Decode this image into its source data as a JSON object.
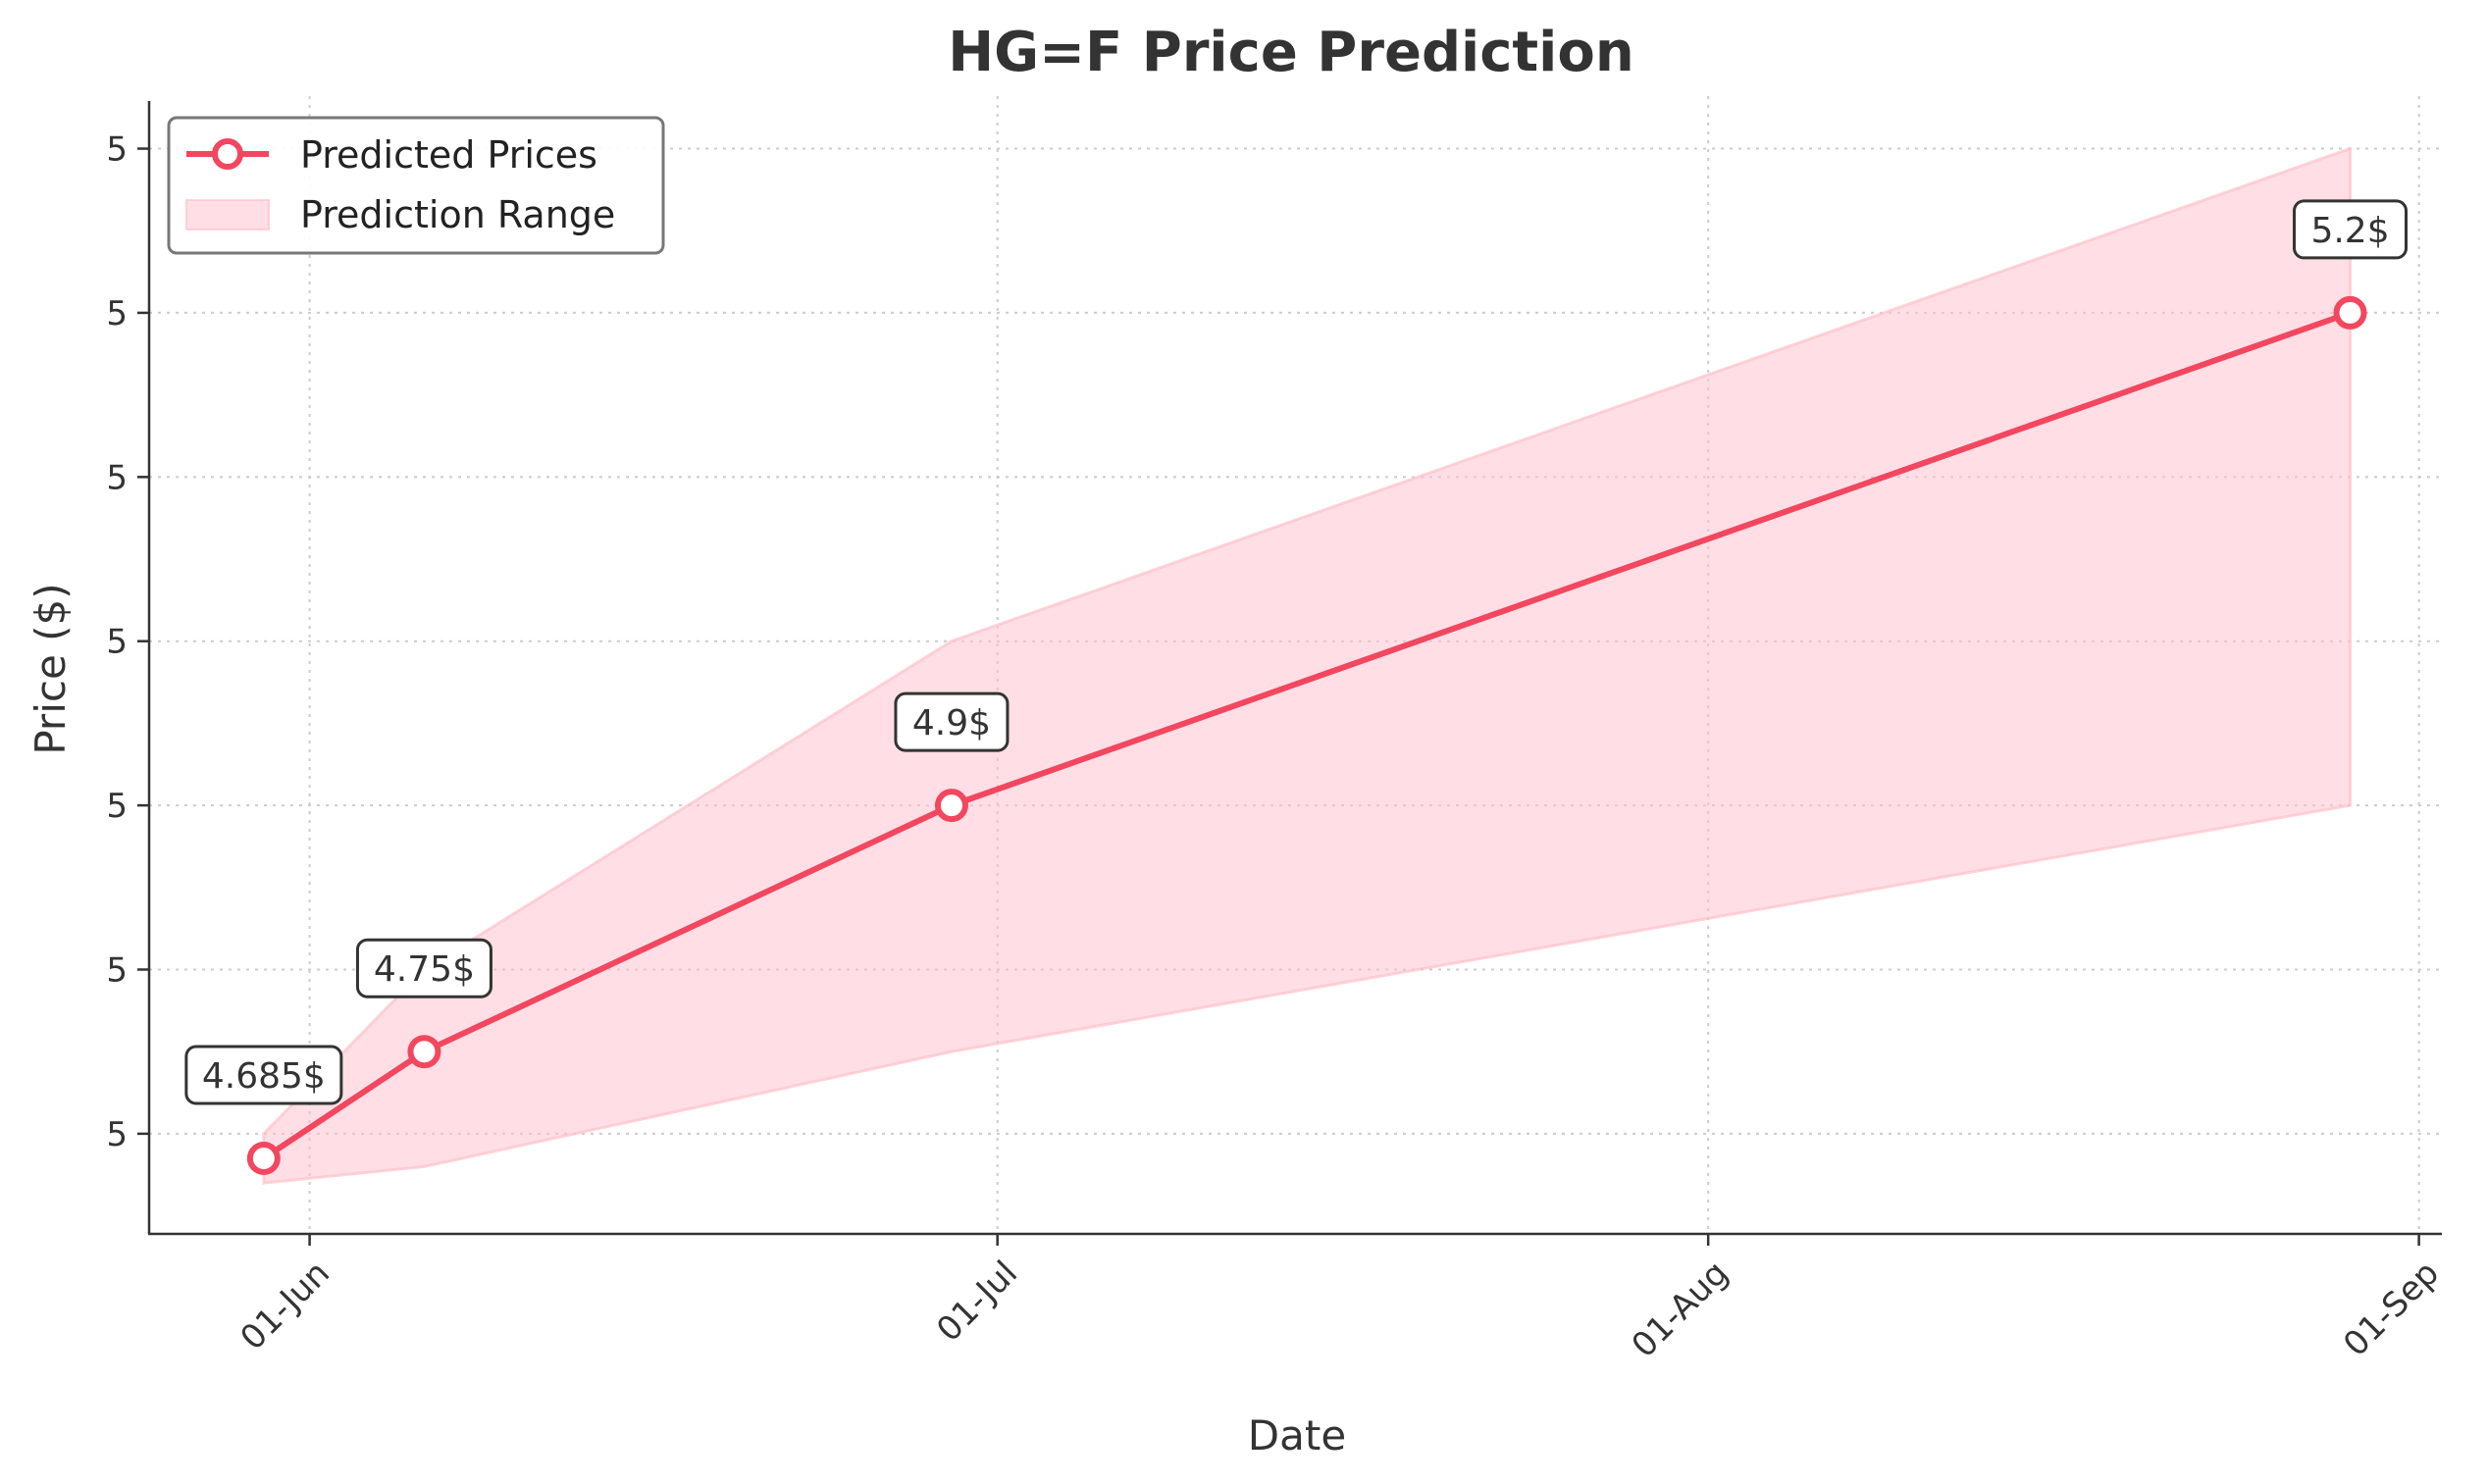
{
  "chart_data": {
    "type": "line",
    "title": "HG=F Price Prediction",
    "xlabel": "Date",
    "ylabel": "Price ($)",
    "x_ticks": [
      {
        "date": "2024-06-01",
        "label": "01-Jun"
      },
      {
        "date": "2024-07-01",
        "label": "01-Jul"
      },
      {
        "date": "2024-08-01",
        "label": "01-Aug"
      },
      {
        "date": "2024-09-01",
        "label": "01-Sep"
      }
    ],
    "y_ticks": [
      {
        "value": 4.7,
        "label": "5"
      },
      {
        "value": 4.8,
        "label": "5"
      },
      {
        "value": 4.9,
        "label": "5"
      },
      {
        "value": 5.0,
        "label": "5"
      },
      {
        "value": 5.1,
        "label": "5"
      },
      {
        "value": 5.2,
        "label": "5"
      },
      {
        "value": 5.3,
        "label": "5"
      }
    ],
    "xlim": [
      "2024-05-25",
      "2024-09-02"
    ],
    "ylim": [
      4.639,
      5.329
    ],
    "grid": true,
    "legend_position": "top-left",
    "series": [
      {
        "name": "Predicted Prices",
        "color": "#f2475f",
        "points": [
          {
            "x": "2024-05-30",
            "y": 4.685,
            "label": "4.685$"
          },
          {
            "x": "2024-06-06",
            "y": 4.75,
            "label": "4.75$"
          },
          {
            "x": "2024-06-29",
            "y": 4.9,
            "label": "4.9$"
          },
          {
            "x": "2024-08-29",
            "y": 5.2,
            "label": "5.2$"
          }
        ]
      }
    ],
    "range": {
      "name": "Prediction Range",
      "color": "#ffc0cb",
      "points": [
        {
          "x": "2024-05-30",
          "low": 4.67,
          "high": 4.7
        },
        {
          "x": "2024-06-06",
          "low": 4.68,
          "high": 4.8
        },
        {
          "x": "2024-06-29",
          "low": 4.75,
          "high": 5.0
        },
        {
          "x": "2024-08-29",
          "low": 4.9,
          "high": 5.3
        }
      ]
    }
  }
}
